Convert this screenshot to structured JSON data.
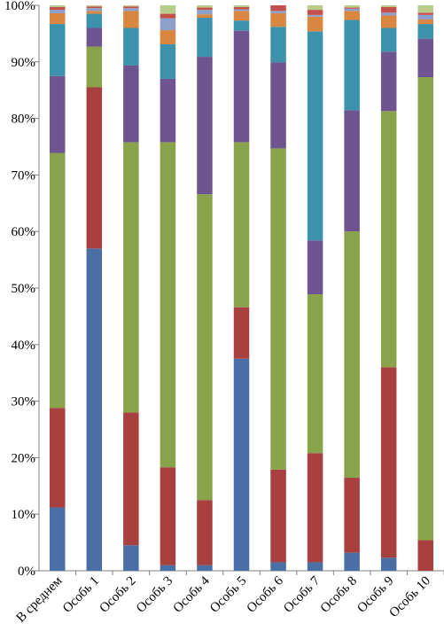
{
  "chart_data": {
    "type": "bar",
    "stacked": true,
    "percent_stacked": true,
    "categories": [
      "В среднем",
      "Особь 1",
      "Особь 2",
      "Особь 3",
      "Особь 4",
      "Особь 5",
      "Особь 6",
      "Особь 7",
      "Особь 8",
      "Особь 9",
      "Особь 10"
    ],
    "y_ticks": [
      "0%",
      "10%",
      "20%",
      "30%",
      "40%",
      "50%",
      "60%",
      "70%",
      "80%",
      "90%",
      "100%"
    ],
    "ylim": [
      0,
      100
    ],
    "grid": false,
    "legend": "none",
    "series": [
      {
        "color": "#4a6fa5",
        "values": [
          11.2,
          57,
          4.5,
          1.0,
          1.0,
          37.5,
          1.5,
          1.5,
          3.2,
          2.3,
          0
        ]
      },
      {
        "color": "#a7403e",
        "values": [
          17.6,
          28.5,
          23.5,
          17.3,
          11.5,
          9.1,
          16.4,
          19.3,
          13.3,
          33.7,
          5.4
        ]
      },
      {
        "color": "#89a34a",
        "values": [
          45.1,
          7.2,
          47.8,
          57.5,
          54.1,
          29.2,
          56.8,
          28.1,
          43.7,
          45.3,
          81.9
        ]
      },
      {
        "color": "#6e5490",
        "values": [
          13.6,
          3.3,
          13.6,
          11.2,
          24.3,
          19.7,
          15.2,
          9.5,
          21.5,
          10.5,
          6.8
        ]
      },
      {
        "color": "#3c92ad",
        "values": [
          9.2,
          2.5,
          6.6,
          6.1,
          6.9,
          1.8,
          6.3,
          37.0,
          16.0,
          4.2,
          2.6
        ]
      },
      {
        "color": "#d98640",
        "values": [
          1.9,
          0.5,
          3.0,
          2.5,
          0.6,
          1.7,
          2.4,
          2.6,
          1.6,
          2.2,
          0.8
        ]
      },
      {
        "color": "#8da0cb",
        "values": [
          0.6,
          0.5,
          0.5,
          2.1,
          0.8,
          0.3,
          0.4,
          0.3,
          0.4,
          0.5,
          0.8
        ]
      },
      {
        "color": "#c4504e",
        "values": [
          0.5,
          0.3,
          0.3,
          0.8,
          0.4,
          0.4,
          1.0,
          0.9,
          0.2,
          1.0,
          0.4
        ]
      },
      {
        "color": "#b8cc8c",
        "values": [
          0.3,
          0.2,
          0.2,
          1.5,
          0.4,
          0.3,
          0,
          0.8,
          0.4,
          0.3,
          1.3
        ]
      }
    ]
  }
}
